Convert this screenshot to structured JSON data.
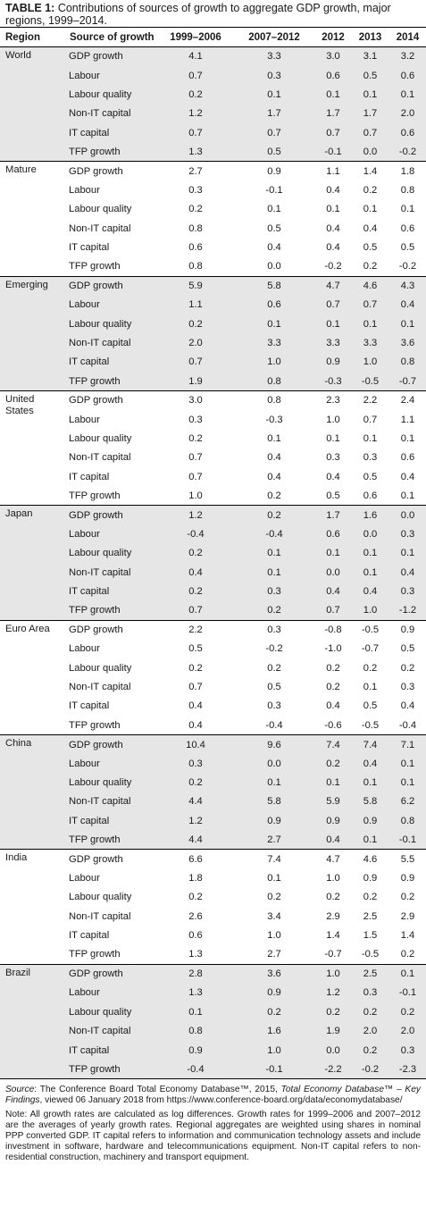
{
  "caption": {
    "label": "TABLE 1:",
    "text": "Contributions of sources of growth to aggregate GDP growth, major regions, 1999–2014."
  },
  "table": {
    "headers": [
      "Region",
      "Source of growth",
      "1999–2006",
      "2007–2012",
      "2012",
      "2013",
      "2014"
    ],
    "groups": [
      {
        "region": "World",
        "shaded": true,
        "rows": [
          {
            "source": "GDP growth",
            "values": [
              "4.1",
              "3.3",
              "3.0",
              "3.1",
              "3.2"
            ]
          },
          {
            "source": "Labour",
            "values": [
              "0.7",
              "0.3",
              "0.6",
              "0.5",
              "0.6"
            ]
          },
          {
            "source": "Labour quality",
            "values": [
              "0.2",
              "0.1",
              "0.1",
              "0.1",
              "0.1"
            ]
          },
          {
            "source": "Non-IT capital",
            "values": [
              "1.2",
              "1.7",
              "1.7",
              "1.7",
              "2.0"
            ]
          },
          {
            "source": "IT capital",
            "values": [
              "0.7",
              "0.7",
              "0.7",
              "0.7",
              "0.6"
            ]
          },
          {
            "source": "TFP growth",
            "values": [
              "1.3",
              "0.5",
              "-0.1",
              "0.0",
              "-0.2"
            ]
          }
        ]
      },
      {
        "region": "Mature",
        "shaded": false,
        "rows": [
          {
            "source": "GDP growth",
            "values": [
              "2.7",
              "0.9",
              "1.1",
              "1.4",
              "1.8"
            ]
          },
          {
            "source": "Labour",
            "values": [
              "0.3",
              "-0.1",
              "0.4",
              "0.2",
              "0.8"
            ]
          },
          {
            "source": "Labour quality",
            "values": [
              "0.2",
              "0.1",
              "0.1",
              "0.1",
              "0.1"
            ]
          },
          {
            "source": "Non-IT capital",
            "values": [
              "0.8",
              "0.5",
              "0.4",
              "0.4",
              "0.6"
            ]
          },
          {
            "source": "IT capital",
            "values": [
              "0.6",
              "0.4",
              "0.4",
              "0.5",
              "0.5"
            ]
          },
          {
            "source": "TFP growth",
            "values": [
              "0.8",
              "0.0",
              "-0.2",
              "0.2",
              "-0.2"
            ]
          }
        ]
      },
      {
        "region": "Emerging",
        "shaded": true,
        "rows": [
          {
            "source": "GDP growth",
            "values": [
              "5.9",
              "5.8",
              "4.7",
              "4.6",
              "4.3"
            ]
          },
          {
            "source": "Labour",
            "values": [
              "1.1",
              "0.6",
              "0.7",
              "0.7",
              "0.4"
            ]
          },
          {
            "source": "Labour quality",
            "values": [
              "0.2",
              "0.1",
              "0.1",
              "0.1",
              "0.1"
            ]
          },
          {
            "source": "Non-IT capital",
            "values": [
              "2.0",
              "3.3",
              "3.3",
              "3.3",
              "3.6"
            ]
          },
          {
            "source": "IT capital",
            "values": [
              "0.7",
              "1.0",
              "0.9",
              "1.0",
              "0.8"
            ]
          },
          {
            "source": "TFP growth",
            "values": [
              "1.9",
              "0.8",
              "-0.3",
              "-0.5",
              "-0.7"
            ]
          }
        ]
      },
      {
        "region": "United States",
        "shaded": false,
        "rows": [
          {
            "source": "GDP growth",
            "values": [
              "3.0",
              "0.8",
              "2.3",
              "2.2",
              "2.4"
            ]
          },
          {
            "source": "Labour",
            "values": [
              "0.3",
              "-0.3",
              "1.0",
              "0.7",
              "1.1"
            ]
          },
          {
            "source": "Labour quality",
            "values": [
              "0.2",
              "0.1",
              "0.1",
              "0.1",
              "0.1"
            ]
          },
          {
            "source": "Non-IT capital",
            "values": [
              "0.7",
              "0.4",
              "0.3",
              "0.3",
              "0.6"
            ]
          },
          {
            "source": "IT capital",
            "values": [
              "0.7",
              "0.4",
              "0.4",
              "0.5",
              "0.4"
            ]
          },
          {
            "source": "TFP growth",
            "values": [
              "1.0",
              "0.2",
              "0.5",
              "0.6",
              "0.1"
            ]
          }
        ]
      },
      {
        "region": "Japan",
        "shaded": true,
        "rows": [
          {
            "source": "GDP growth",
            "values": [
              "1.2",
              "0.2",
              "1.7",
              "1.6",
              "0.0"
            ]
          },
          {
            "source": "Labour",
            "values": [
              "-0.4",
              "-0.4",
              "0.6",
              "0.0",
              "0.3"
            ]
          },
          {
            "source": "Labour quality",
            "values": [
              "0.2",
              "0.1",
              "0.1",
              "0.1",
              "0.1"
            ]
          },
          {
            "source": "Non-IT capital",
            "values": [
              "0.4",
              "0.1",
              "0.0",
              "0.1",
              "0.4"
            ]
          },
          {
            "source": "IT capital",
            "values": [
              "0.2",
              "0.3",
              "0.4",
              "0.4",
              "0.3"
            ]
          },
          {
            "source": "TFP growth",
            "values": [
              "0.7",
              "0.2",
              "0.7",
              "1.0",
              "-1.2"
            ]
          }
        ]
      },
      {
        "region": "Euro Area",
        "shaded": false,
        "rows": [
          {
            "source": "GDP growth",
            "values": [
              "2.2",
              "0.3",
              "-0.8",
              "-0.5",
              "0.9"
            ]
          },
          {
            "source": "Labour",
            "values": [
              "0.5",
              "-0.2",
              "-1.0",
              "-0.7",
              "0.5"
            ]
          },
          {
            "source": "Labour quality",
            "values": [
              "0.2",
              "0.2",
              "0.2",
              "0.2",
              "0.2"
            ]
          },
          {
            "source": "Non-IT capital",
            "values": [
              "0.7",
              "0.5",
              "0.2",
              "0.1",
              "0.3"
            ]
          },
          {
            "source": "IT capital",
            "values": [
              "0.4",
              "0.3",
              "0.4",
              "0.5",
              "0.4"
            ]
          },
          {
            "source": "TFP growth",
            "values": [
              "0.4",
              "-0.4",
              "-0.6",
              "-0.5",
              "-0.4"
            ]
          }
        ]
      },
      {
        "region": "China",
        "shaded": true,
        "rows": [
          {
            "source": "GDP growth",
            "values": [
              "10.4",
              "9.6",
              "7.4",
              "7.4",
              "7.1"
            ]
          },
          {
            "source": "Labour",
            "values": [
              "0.3",
              "0.0",
              "0.2",
              "0.4",
              "0.1"
            ]
          },
          {
            "source": "Labour quality",
            "values": [
              "0.2",
              "0.1",
              "0.1",
              "0.1",
              "0.1"
            ]
          },
          {
            "source": "Non-IT capital",
            "values": [
              "4.4",
              "5.8",
              "5.9",
              "5.8",
              "6.2"
            ]
          },
          {
            "source": "IT capital",
            "values": [
              "1.2",
              "0.9",
              "0.9",
              "0.9",
              "0.8"
            ]
          },
          {
            "source": "TFP growth",
            "values": [
              "4.4",
              "2.7",
              "0.4",
              "0.1",
              "-0.1"
            ]
          }
        ]
      },
      {
        "region": "India",
        "shaded": false,
        "rows": [
          {
            "source": "GDP growth",
            "values": [
              "6.6",
              "7.4",
              "4.7",
              "4.6",
              "5.5"
            ]
          },
          {
            "source": "Labour",
            "values": [
              "1.8",
              "0.1",
              "1.0",
              "0.9",
              "0.9"
            ]
          },
          {
            "source": "Labour quality",
            "values": [
              "0.2",
              "0.2",
              "0.2",
              "0.2",
              "0.2"
            ]
          },
          {
            "source": "Non-IT capital",
            "values": [
              "2.6",
              "3.4",
              "2.9",
              "2.5",
              "2.9"
            ]
          },
          {
            "source": "IT capital",
            "values": [
              "0.6",
              "1.0",
              "1.4",
              "1.5",
              "1.4"
            ]
          },
          {
            "source": "TFP growth",
            "values": [
              "1.3",
              "2.7",
              "-0.7",
              "-0.5",
              "0.2"
            ]
          }
        ]
      },
      {
        "region": "Brazil",
        "shaded": true,
        "rows": [
          {
            "source": "GDP growth",
            "values": [
              "2.8",
              "3.6",
              "1.0",
              "2.5",
              "0.1"
            ]
          },
          {
            "source": "Labour",
            "values": [
              "1.3",
              "0.9",
              "1.2",
              "0.3",
              "-0.1"
            ]
          },
          {
            "source": "Labour quality",
            "values": [
              "0.1",
              "0.2",
              "0.2",
              "0.2",
              "0.2"
            ]
          },
          {
            "source": "Non-IT capital",
            "values": [
              "0.8",
              "1.6",
              "1.9",
              "2.0",
              "2.0"
            ]
          },
          {
            "source": "IT capital",
            "values": [
              "0.9",
              "1.0",
              "0.0",
              "0.2",
              "0.3"
            ]
          },
          {
            "source": "TFP growth",
            "values": [
              "-0.4",
              "-0.1",
              "-2.2",
              "-0.2",
              "-2.3"
            ]
          }
        ]
      }
    ]
  },
  "notes": {
    "source_label": "Source",
    "source_text_1": ": The Conference Board Total Economy Database™, 2015, ",
    "source_title": "Total Economy Database™ – Key Findings",
    "source_text_2": ", viewed 06 January 2018 from https://www.conference-board.org/data/economydatabase/",
    "note": "Note: All growth rates are calculated as log differences. Growth rates for 1999–2006 and 2007–2012 are the averages of yearly growth rates. Regional aggregates are weighted using shares in nominal PPP converted GDP. IT capital refers to information and communication technology assets and include investment in software, hardware and telecommunications equipment. Non-IT capital refers to non-residential construction, machinery and transport equipment."
  },
  "colors": {
    "shade": "#e6e6e6",
    "rule": "#000000"
  }
}
